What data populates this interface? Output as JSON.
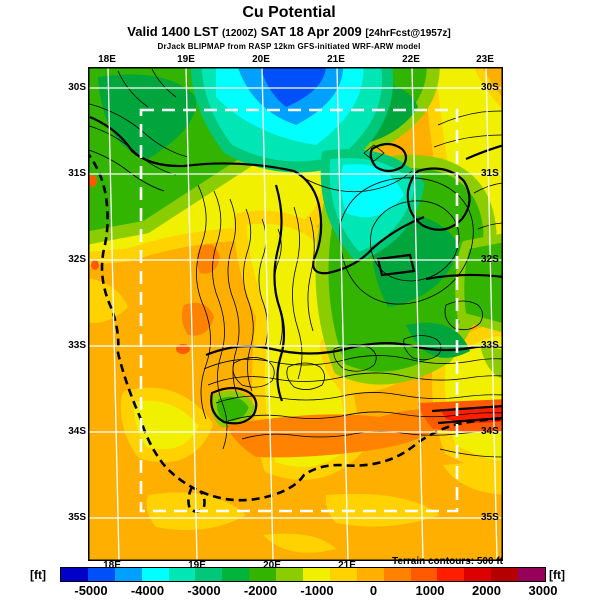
{
  "header": {
    "title": "Cu Potential",
    "valid_main_1": "Valid 1400 LST",
    "valid_small_1": "(1200Z)",
    "valid_main_2": "SAT 18 Apr 2009",
    "valid_small_2": "[24hrFcst@1957z]",
    "model_line": "DrJack BLIPMAP from RASP 12km GFS-initiated WRF-ARW model"
  },
  "map": {
    "lat_labels": [
      "30S",
      "31S",
      "32S",
      "33S",
      "34S",
      "35S"
    ],
    "lon_labels_top": [
      "18E",
      "19E",
      "20E",
      "21E",
      "22E",
      "23E"
    ],
    "lon_labels_bottom": [
      "18E",
      "19E",
      "20E",
      "21E"
    ],
    "terrain_note": "Terrain contours: 500 ft"
  },
  "legend": {
    "unit_left": "[ft]",
    "unit_right": "[ft]",
    "tick_labels": [
      "-5000",
      "-4000",
      "-3000",
      "-2000",
      "-1000",
      "0",
      "1000",
      "2000",
      "3000"
    ],
    "colors": [
      "#0000C8",
      "#0050FA",
      "#00A0FF",
      "#00FFFF",
      "#00E6B4",
      "#00C878",
      "#00B43C",
      "#32B400",
      "#8CCD00",
      "#F0F000",
      "#FFD200",
      "#FFAF00",
      "#FF8200",
      "#FF5A00",
      "#FF1E00",
      "#DC0000",
      "#B40000",
      "#96005A"
    ]
  }
}
